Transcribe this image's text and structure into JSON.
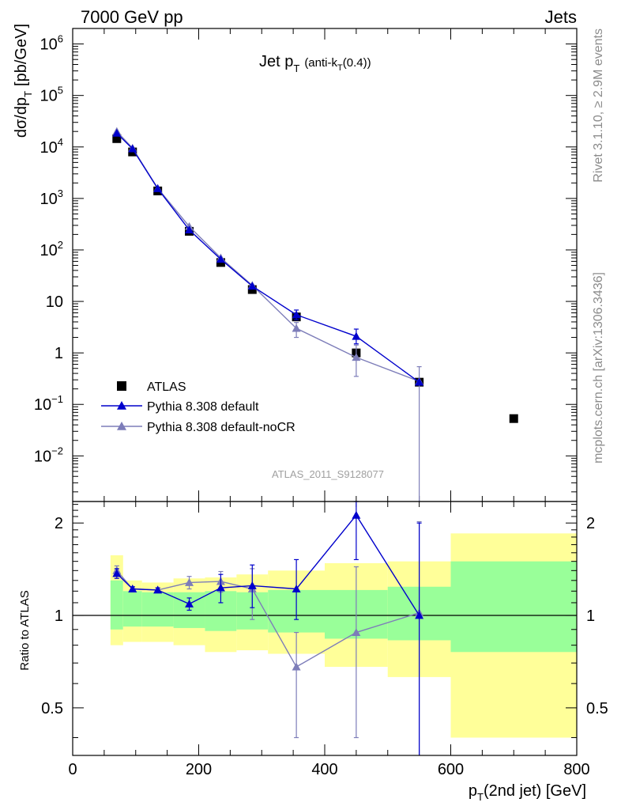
{
  "header": {
    "left": "7000 GeV pp",
    "right": "Jets"
  },
  "side_labels": {
    "rivet": "Rivet 3.1.10, ≥ 2.9M events",
    "mcplots": "mcplots.cern.ch [arXiv:1306.3436]"
  },
  "analysis_id": "ATLAS_2011_S9128077",
  "chart_data": {
    "type": "scatter",
    "title": {
      "main": "Jet p",
      "sub": "T",
      "paren": "(anti-k",
      "paren_sub": "T",
      "paren_end": "(0.4))"
    },
    "xlabel": {
      "main": "p",
      "sub": "T",
      "rest": "(2nd jet) [GeV]"
    },
    "ylabel": {
      "main": "dσ/dp",
      "sub": "T",
      "rest": "[pb/GeV]"
    },
    "ratio_ylabel": "Ratio to ATLAS",
    "xlim": [
      0,
      800
    ],
    "ylim_main": [
      0.0013,
      2000000
    ],
    "ylim_ratio": [
      0.35,
      2.35
    ],
    "y_scale": "log",
    "x_ticks": [
      "0",
      "200",
      "400",
      "600",
      "800"
    ],
    "y_ticks": [
      {
        "v": 1000000,
        "base": "10",
        "exp": "6"
      },
      {
        "v": 100000,
        "base": "10",
        "exp": "5"
      },
      {
        "v": 10000,
        "base": "10",
        "exp": "4"
      },
      {
        "v": 1000,
        "base": "10",
        "exp": "3"
      },
      {
        "v": 100,
        "base": "10",
        "exp": "2"
      },
      {
        "v": 10,
        "base": "10",
        "exp": ""
      },
      {
        "v": 1,
        "base": "1",
        "exp": ""
      },
      {
        "v": 0.1,
        "base": "10",
        "exp": "−1"
      },
      {
        "v": 0.01,
        "base": "10",
        "exp": "−2"
      }
    ],
    "ratio_ticks": [
      {
        "v": 2,
        "label": "2"
      },
      {
        "v": 1,
        "label": "1"
      },
      {
        "v": 0.5,
        "label": "0.5"
      }
    ],
    "legend_position": "left",
    "series": [
      {
        "name": "ATLAS",
        "color": "#000000",
        "marker": "square",
        "x": [
          70,
          95,
          135,
          185,
          235,
          285,
          355,
          450,
          550,
          700
        ],
        "y": [
          14500,
          8000,
          1400,
          230,
          57,
          17,
          5,
          1,
          0.27,
          0.053
        ],
        "band_edges": [
          60,
          80,
          110,
          160,
          210,
          260,
          310,
          400,
          500,
          600,
          800
        ],
        "band_green": [
          [
            0.9,
            1.3
          ],
          [
            0.92,
            1.2
          ],
          [
            0.92,
            1.19
          ],
          [
            0.91,
            1.19
          ],
          [
            0.89,
            1.2
          ],
          [
            0.9,
            1.19
          ],
          [
            0.88,
            1.21
          ],
          [
            0.84,
            1.21
          ],
          [
            0.83,
            1.24
          ],
          [
            0.76,
            1.5
          ]
        ],
        "band_yellow": [
          [
            0.8,
            1.57
          ],
          [
            0.82,
            1.3
          ],
          [
            0.82,
            1.28
          ],
          [
            0.8,
            1.32
          ],
          [
            0.76,
            1.33
          ],
          [
            0.77,
            1.36
          ],
          [
            0.75,
            1.4
          ],
          [
            0.68,
            1.48
          ],
          [
            0.63,
            1.5
          ],
          [
            0.4,
            1.85
          ]
        ]
      },
      {
        "name": "Pythia 8.308 default",
        "color": "#0000cc",
        "marker": "triangle",
        "x": [
          70,
          95,
          135,
          185,
          235,
          285,
          355,
          450,
          550
        ],
        "y": [
          18500,
          9200,
          1550,
          245,
          66,
          19.8,
          5.5,
          2.1,
          0.27
        ],
        "yerr_main": [
          [
            0.0,
            0.0
          ],
          [
            0.0,
            0.0
          ],
          [
            0.0,
            0.0
          ],
          [
            0.0,
            0.0
          ],
          [
            0.0,
            0.0
          ],
          [
            0.0,
            0.0
          ],
          [
            1.1,
            1.3
          ],
          [
            0.6,
            0.8
          ],
          [
            0.0,
            0.0
          ]
        ],
        "ratio": [
          1.37,
          1.22,
          1.21,
          1.09,
          1.23,
          1.25,
          1.22,
          2.12,
          1.0
        ],
        "ratio_err": [
          [
            0.05,
            0.05
          ],
          [
            0.02,
            0.02
          ],
          [
            0.02,
            0.02
          ],
          [
            0.05,
            0.05
          ],
          [
            0.13,
            0.13
          ],
          [
            0.19,
            0.21
          ],
          [
            0.25,
            0.3
          ],
          [
            0.6,
            0.6
          ],
          [
            1.0,
            1.0
          ]
        ]
      },
      {
        "name": "Pythia 8.308 default-noCR",
        "color": "#7d7db9",
        "marker": "triangle",
        "x": [
          70,
          95,
          135,
          185,
          235,
          285,
          355,
          450,
          550
        ],
        "y": [
          20000,
          9500,
          1580,
          285,
          70,
          20.5,
          3,
          0.82,
          0.28
        ],
        "yerr_main": [
          [
            0.0,
            0.0
          ],
          [
            0.0,
            0.0
          ],
          [
            0.0,
            0.0
          ],
          [
            0.0,
            0.0
          ],
          [
            0.0,
            0.0
          ],
          [
            0.0,
            0.0
          ],
          [
            1.0,
            0.9
          ],
          [
            0.47,
            0.6
          ],
          [
            0.28,
            0.26
          ]
        ],
        "ratio": [
          1.4,
          1.22,
          1.21,
          1.28,
          1.29,
          1.22,
          0.68,
          0.88,
          1.02
        ],
        "ratio_err": [
          [
            0.05,
            0.05
          ],
          [
            0.02,
            0.02
          ],
          [
            0.02,
            0.02
          ],
          [
            0.06,
            0.06
          ],
          [
            0.1,
            0.1
          ],
          [
            0.25,
            0.2
          ],
          [
            0.28,
            0.2
          ],
          [
            0.48,
            0.56
          ],
          [
            1.0,
            1.0
          ]
        ]
      }
    ]
  }
}
